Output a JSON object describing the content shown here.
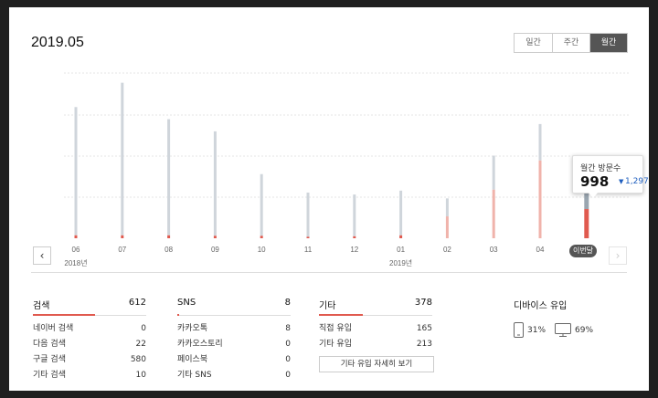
{
  "header": {
    "title": "2019.05"
  },
  "period_tabs": [
    {
      "label": "일간",
      "active": false
    },
    {
      "label": "주간",
      "active": false
    },
    {
      "label": "월간",
      "active": true
    }
  ],
  "chart_data": {
    "type": "bar",
    "categories": [
      "06",
      "07",
      "08",
      "09",
      "10",
      "11",
      "12",
      "01",
      "02",
      "03",
      "04",
      "이번달"
    ],
    "year_labels": [
      {
        "label": "2018년",
        "at_category": 0
      },
      {
        "label": "2019년",
        "at_category": 7
      }
    ],
    "series": [
      {
        "values": [
          2700,
          3200,
          2450,
          2200,
          1320,
          940,
          900,
          980,
          820,
          1700,
          2350,
          998
        ],
        "color": "#cfd5db"
      }
    ],
    "highlight_series": [
      {
        "values": [
          60,
          60,
          60,
          50,
          50,
          30,
          40,
          60,
          450,
          1000,
          1600,
          600
        ],
        "color": "#f0b3ab"
      }
    ],
    "current_color": "#e05a4f",
    "ylim": [
      0,
      3400
    ],
    "grid": true
  },
  "tooltip": {
    "label": "월간 방문수",
    "value": "998",
    "prev_value": "1,297",
    "trend_icon": "down-arrow-icon"
  },
  "current_badge": "이번달",
  "nav": {
    "prev_icon": "chevron-left-icon",
    "next_icon": "chevron-right-icon",
    "prev_glyph": "‹",
    "next_glyph": "›"
  },
  "sources": [
    {
      "title": "검색",
      "total": "612",
      "bar_fraction": 0.55,
      "rows": [
        {
          "label": "네이버 검색",
          "value": "0"
        },
        {
          "label": "다음 검색",
          "value": "22"
        },
        {
          "label": "구글 검색",
          "value": "580"
        },
        {
          "label": "기타 검색",
          "value": "10"
        }
      ]
    },
    {
      "title": "SNS",
      "total": "8",
      "bar_fraction": 0.02,
      "rows": [
        {
          "label": "카카오톡",
          "value": "8"
        },
        {
          "label": "카카오스토리",
          "value": "0"
        },
        {
          "label": "페이스북",
          "value": "0"
        },
        {
          "label": "기타 SNS",
          "value": "0"
        }
      ]
    },
    {
      "title": "기타",
      "total": "378",
      "bar_fraction": 0.39,
      "rows": [
        {
          "label": "직접 유입",
          "value": "165"
        },
        {
          "label": "기타 유입",
          "value": "213"
        }
      ],
      "button_label": "기타 유입 자세히 보기"
    }
  ],
  "device": {
    "title": "디바이스 유입",
    "mobile_percent": "31%",
    "pc_percent": "69%",
    "mobile_icon": "mobile-icon",
    "pc_icon": "monitor-icon"
  }
}
